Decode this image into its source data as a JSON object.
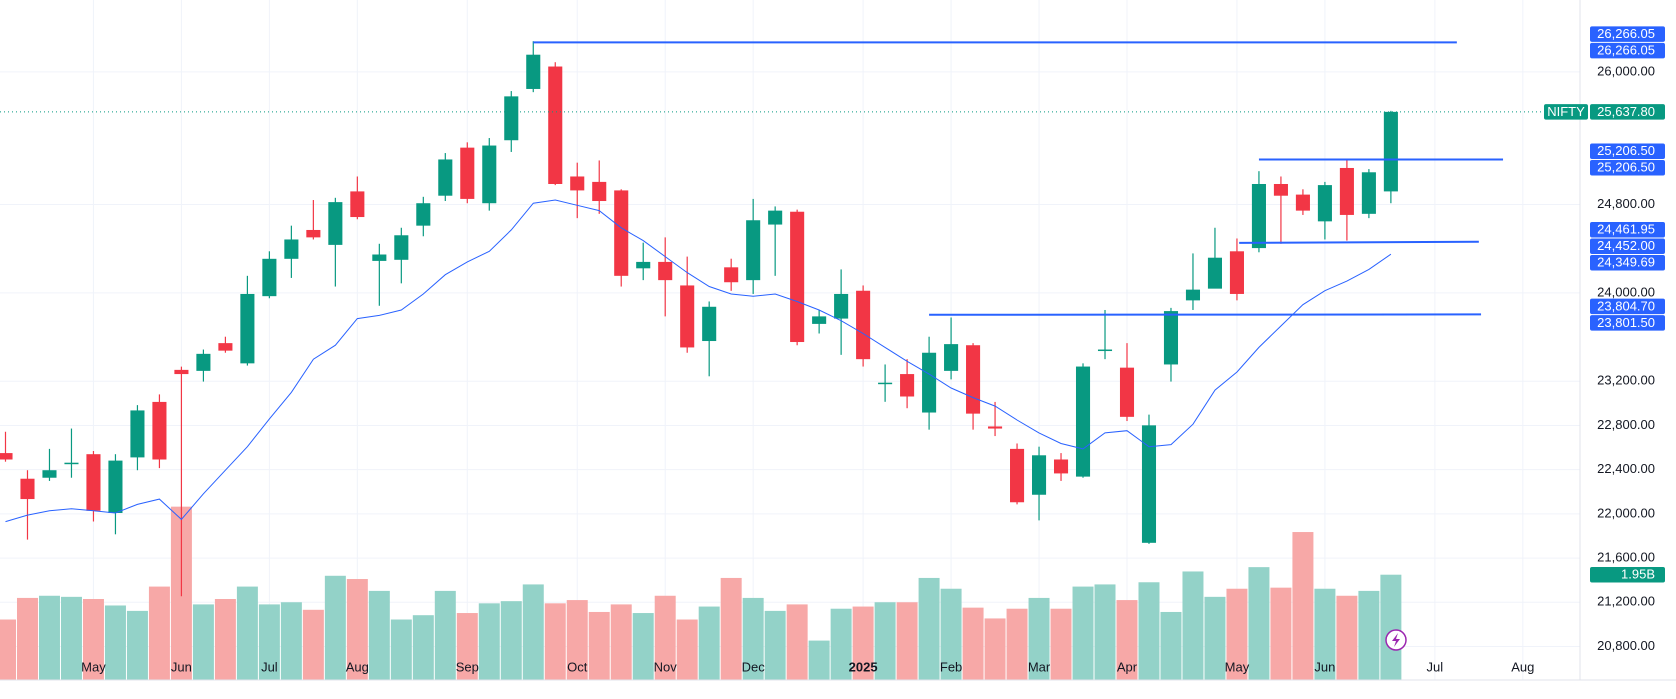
{
  "chart_data": {
    "type": "candlestick",
    "symbol": "NIFTY",
    "colors": {
      "up": "#089981",
      "down": "#f23645",
      "volume_up": "#93d2c8",
      "volume_down": "#f7a8a7",
      "line": "#2962ff"
    },
    "open": [
      22550,
      22318,
      22327,
      22453,
      22540,
      22008,
      22511,
      23013,
      23303,
      23294,
      23545,
      23362,
      23970,
      24308,
      24569,
      24434,
      24918,
      24289,
      24299,
      24608,
      24879,
      25314,
      24811,
      25381,
      25845,
      26048,
      25053,
      25004,
      24927,
      24222,
      24280,
      24067,
      23564,
      24231,
      24115,
      24618,
      24734,
      23719,
      23767,
      24019,
      23178,
      23265,
      22917,
      23294,
      23526,
      22791,
      22588,
      22173,
      22492,
      22337,
      23477,
      23323,
      21738,
      23352,
      23932,
      24038,
      24376,
      24405,
      24985,
      24889,
      24647,
      25130,
      24715,
      24918
    ],
    "high": [
      22743,
      22395,
      22588,
      22772,
      22569,
      22540,
      22984,
      23081,
      23332,
      23487,
      23603,
      24154,
      24376,
      24608,
      24840,
      24860,
      25053,
      24444,
      24589,
      24869,
      25265,
      25362,
      25401,
      25826,
      26277,
      26087,
      25178,
      25198,
      24937,
      24454,
      24502,
      24328,
      23922,
      24309,
      24850,
      24782,
      24753,
      23845,
      24212,
      24067,
      23352,
      23400,
      23603,
      23777,
      23545,
      23013,
      22637,
      22608,
      22550,
      23362,
      23845,
      23545,
      22898,
      23864,
      24357,
      24589,
      24492,
      25101,
      25053,
      24937,
      25004,
      25198,
      25120,
      25647
    ],
    "low": [
      22472,
      21767,
      22298,
      22327,
      21931,
      21815,
      22395,
      22414,
      21255,
      23197,
      23458,
      23342,
      23951,
      24135,
      24483,
      24057,
      24666,
      23883,
      24086,
      24512,
      24831,
      24811,
      24744,
      25275,
      25816,
      24975,
      24676,
      24715,
      24057,
      24115,
      23787,
      23458,
      23245,
      24018,
      23990,
      24154,
      23526,
      23632,
      23439,
      23333,
      23014,
      22956,
      22762,
      23217,
      22762,
      22704,
      22086,
      21941,
      22298,
      22327,
      23400,
      22840,
      21728,
      23197,
      23845,
      24086,
      23932,
      24367,
      24444,
      24705,
      24483,
      24473,
      24676,
      24811
    ],
    "close": [
      22492,
      22134,
      22395,
      22463,
      22028,
      22482,
      22936,
      22492,
      23265,
      23448,
      23477,
      23990,
      24308,
      24483,
      24502,
      24821,
      24686,
      24347,
      24521,
      24811,
      25207,
      24850,
      25333,
      25778,
      26155,
      24985,
      24927,
      24831,
      24154,
      24280,
      24115,
      23506,
      23874,
      24096,
      24657,
      24744,
      23555,
      23787,
      23990,
      23400,
      23187,
      23062,
      23458,
      23536,
      22907,
      22772,
      22105,
      22530,
      22366,
      23333,
      23487,
      22878,
      22801,
      23835,
      24029,
      24318,
      23990,
      24985,
      24879,
      24744,
      24975,
      24705,
      25091,
      25637.8
    ],
    "last_label": "25,637.80",
    "ma": {
      "values": [
        21930,
        21989,
        22028,
        22047,
        22028,
        22008,
        22086,
        22134,
        21950,
        22182,
        22395,
        22608,
        22859,
        23100,
        23400,
        23526,
        23767,
        23796,
        23845,
        23990,
        24164,
        24280,
        24376,
        24570,
        24811,
        24840,
        24792,
        24744,
        24589,
        24473,
        24328,
        24183,
        24057,
        23990,
        23970,
        23990,
        23922,
        23845,
        23748,
        23632,
        23506,
        23381,
        23265,
        23139,
        23052,
        22975,
        22849,
        22733,
        22637,
        22588,
        22733,
        22753,
        22608,
        22627,
        22811,
        23120,
        23284,
        23506,
        23700,
        23893,
        24019,
        24106,
        24212,
        24349.69
      ],
      "last_label": "24,349.69"
    },
    "volume": {
      "values": [
        1.12,
        1.52,
        1.56,
        1.54,
        1.5,
        1.38,
        1.28,
        1.73,
        3.21,
        1.4,
        1.5,
        1.73,
        1.4,
        1.44,
        1.3,
        1.93,
        1.87,
        1.65,
        1.12,
        1.2,
        1.65,
        1.24,
        1.42,
        1.46,
        1.77,
        1.42,
        1.48,
        1.26,
        1.4,
        1.24,
        1.56,
        1.12,
        1.36,
        1.89,
        1.52,
        1.28,
        1.4,
        0.73,
        1.32,
        1.36,
        1.44,
        1.44,
        1.89,
        1.69,
        1.34,
        1.14,
        1.32,
        1.52,
        1.32,
        1.73,
        1.77,
        1.48,
        1.81,
        1.26,
        2.01,
        1.54,
        1.69,
        2.09,
        1.71,
        2.74,
        1.69,
        1.56,
        1.65,
        1.95
      ],
      "last_label": "1.95B"
    },
    "trendlines": [
      {
        "x": [
          24,
          66
        ],
        "values": [
          26266.05,
          26266.05
        ],
        "labels": [
          "26,266.05",
          "26,266.05"
        ]
      },
      {
        "x": [
          57,
          68.1
        ],
        "values": [
          25206.5,
          25206.5
        ],
        "labels": [
          "25,206.50",
          "25,206.50"
        ]
      },
      {
        "x": [
          56.1,
          67
        ],
        "values": [
          24452,
          24461.95
        ],
        "labels": [
          "24,452.00",
          "24,461.95"
        ]
      },
      {
        "x": [
          42,
          67.1
        ],
        "values": [
          23801.5,
          23804.7
        ],
        "labels": [
          "23,801.50",
          "23,804.70"
        ]
      }
    ],
    "ylim": [
      20750,
      26650
    ],
    "yticks": [
      {
        "value": 26000,
        "label": "26,000.00"
      },
      {
        "value": 24800,
        "label": "24,800.00"
      },
      {
        "value": 24000,
        "label": "24,000.00"
      },
      {
        "value": 23200,
        "label": "23,200.00"
      },
      {
        "value": 22800,
        "label": "22,800.00"
      },
      {
        "value": 22400,
        "label": "22,400.00"
      },
      {
        "value": 22000,
        "label": "22,000.00"
      },
      {
        "value": 21600,
        "label": "21,600.00"
      },
      {
        "value": 21200,
        "label": "21,200.00"
      },
      {
        "value": 20800,
        "label": "20,800.00"
      }
    ],
    "xlim": [
      -0.25,
      71.6
    ],
    "xticks": [
      {
        "value": 4,
        "label": "May"
      },
      {
        "value": 8,
        "label": "Jun"
      },
      {
        "value": 12,
        "label": "Jul"
      },
      {
        "value": 16,
        "label": "Aug"
      },
      {
        "value": 21,
        "label": "Sep"
      },
      {
        "value": 26,
        "label": "Oct"
      },
      {
        "value": 30,
        "label": "Nov"
      },
      {
        "value": 34,
        "label": "Dec"
      },
      {
        "value": 39,
        "label": "2025"
      },
      {
        "value": 43,
        "label": "Feb"
      },
      {
        "value": 47,
        "label": "Mar"
      },
      {
        "value": 51,
        "label": "Apr"
      },
      {
        "value": 56,
        "label": "May"
      },
      {
        "value": 60,
        "label": "Jun"
      },
      {
        "value": 65,
        "label": "Jul"
      },
      {
        "value": 69,
        "label": "Aug"
      }
    ],
    "grid": true
  }
}
